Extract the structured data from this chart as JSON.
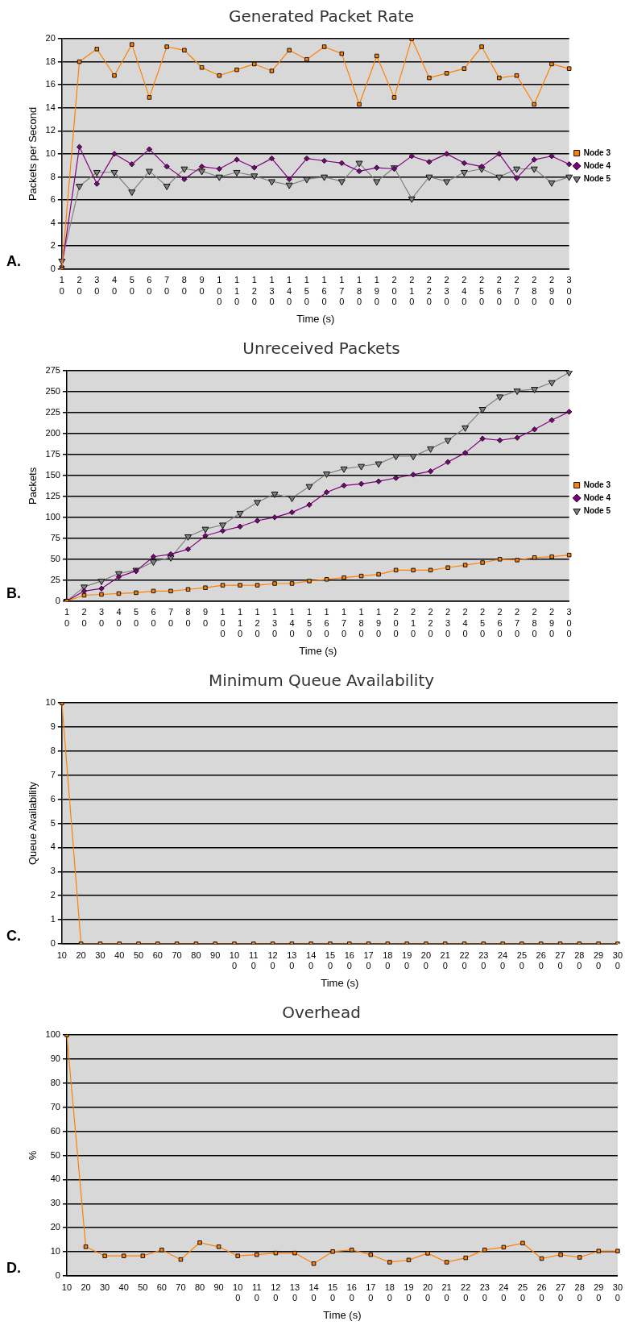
{
  "chart_data": [
    {
      "type": "line",
      "title": "Generated Packet Rate",
      "xlabel": "Time (s)",
      "ylabel": "Packets per Second",
      "annotations": [
        "A."
      ],
      "categories": [
        "10",
        "20",
        "30",
        "40",
        "50",
        "60",
        "70",
        "80",
        "90",
        "100",
        "110",
        "120",
        "130",
        "140",
        "150",
        "160",
        "170",
        "180",
        "190",
        "200",
        "210",
        "220",
        "230",
        "240",
        "250",
        "260",
        "270",
        "280",
        "290",
        "300"
      ],
      "series": [
        {
          "name": "Node 3",
          "color": "#ff8000",
          "marker": "square",
          "values": [
            0,
            18,
            19.1,
            16.8,
            19.5,
            14.9,
            19.3,
            19,
            17.5,
            16.8,
            17.3,
            17.8,
            17.2,
            19,
            18.2,
            19.3,
            18.7,
            14.3,
            18.5,
            14.9,
            20,
            16.6,
            17,
            17.4,
            19.3,
            16.6,
            16.8,
            14.3,
            17.8,
            17.4
          ]
        },
        {
          "name": "Node 4",
          "color": "#800080",
          "marker": "diamond",
          "values": [
            0.2,
            10.6,
            7.4,
            10,
            9.1,
            10.4,
            8.9,
            7.8,
            8.9,
            8.7,
            9.5,
            8.8,
            9.6,
            7.8,
            9.6,
            9.4,
            9.2,
            8.5,
            8.8,
            8.7,
            9.8,
            9.3,
            10,
            9.2,
            8.9,
            10,
            7.9,
            9.5,
            9.8,
            9.1
          ]
        },
        {
          "name": "Node 5",
          "color": "#808080",
          "marker": "triangle",
          "values": [
            0.7,
            7.2,
            8.4,
            8.4,
            6.7,
            8.5,
            7.2,
            8.7,
            8.5,
            8,
            8.4,
            8.1,
            7.6,
            7.3,
            7.8,
            8,
            7.6,
            9.2,
            7.6,
            8.8,
            6.1,
            8,
            7.6,
            8.4,
            8.7,
            8,
            8.7,
            8.7,
            7.5,
            8
          ]
        }
      ],
      "ylim": [
        0,
        20
      ],
      "yticks": [
        0,
        2,
        4,
        6,
        8,
        10,
        12,
        14,
        16,
        18,
        20
      ],
      "grid": "y",
      "legend": "right"
    },
    {
      "type": "line",
      "title": "Unreceived Packets",
      "xlabel": "Time (s)",
      "ylabel": "Packets",
      "annotations": [
        "B."
      ],
      "categories": [
        "10",
        "20",
        "30",
        "40",
        "50",
        "60",
        "70",
        "80",
        "90",
        "100",
        "110",
        "120",
        "130",
        "140",
        "150",
        "160",
        "170",
        "180",
        "190",
        "200",
        "210",
        "220",
        "230",
        "240",
        "250",
        "260",
        "270",
        "280",
        "290",
        "300"
      ],
      "series": [
        {
          "name": "Node 3",
          "color": "#ff8000",
          "marker": "square",
          "values": [
            0,
            7,
            8,
            9,
            10,
            12,
            12,
            14,
            16,
            19,
            19,
            19,
            21,
            21,
            24,
            26,
            28,
            30,
            32,
            37,
            37,
            37,
            40,
            43,
            46,
            50,
            49,
            52,
            53,
            55
          ]
        },
        {
          "name": "Node 4",
          "color": "#800080",
          "marker": "diamond",
          "values": [
            0,
            12,
            15,
            29,
            36,
            53,
            56,
            62,
            78,
            84,
            89,
            96,
            100,
            106,
            115,
            130,
            138,
            140,
            143,
            147,
            151,
            155,
            166,
            177,
            194,
            192,
            195,
            205,
            216,
            226
          ]
        },
        {
          "name": "Node 5",
          "color": "#808080",
          "marker": "triangle",
          "values": [
            0,
            17,
            24,
            33,
            37,
            47,
            52,
            77,
            86,
            91,
            105,
            118,
            128,
            123,
            137,
            152,
            158,
            161,
            164,
            173,
            173,
            182,
            192,
            207,
            229,
            244,
            251,
            253,
            261,
            273
          ]
        }
      ],
      "ylim": [
        0,
        275
      ],
      "yticks": [
        0,
        25,
        50,
        75,
        100,
        125,
        150,
        175,
        200,
        225,
        250,
        275
      ],
      "grid": "y",
      "legend": "right"
    },
    {
      "type": "line",
      "title": "Minimum Queue Availability",
      "xlabel": "Time (s)",
      "ylabel": "Queue Availability",
      "annotations": [
        "C."
      ],
      "categories": [
        "10",
        "20",
        "30",
        "40",
        "50",
        "60",
        "70",
        "80",
        "90",
        "100",
        "110",
        "120",
        "130",
        "140",
        "150",
        "160",
        "170",
        "180",
        "190",
        "200",
        "210",
        "220",
        "230",
        "240",
        "250",
        "260",
        "270",
        "280",
        "290",
        "300"
      ],
      "series": [
        {
          "color": "#ff8000",
          "marker": "square",
          "values": [
            10,
            0,
            0,
            0,
            0,
            0,
            0,
            0,
            0,
            0,
            0,
            0,
            0,
            0,
            0,
            0,
            0,
            0,
            0,
            0,
            0,
            0,
            0,
            0,
            0,
            0,
            0,
            0,
            0,
            0
          ]
        }
      ],
      "ylim": [
        0,
        10
      ],
      "yticks": [
        0,
        1,
        2,
        3,
        4,
        5,
        6,
        7,
        8,
        9,
        10
      ],
      "grid": "y"
    },
    {
      "type": "line",
      "title": "Overhead",
      "xlabel": "Time (s)",
      "ylabel": "%",
      "annotations": [
        "D."
      ],
      "categories": [
        "10",
        "20",
        "30",
        "40",
        "50",
        "60",
        "70",
        "80",
        "90",
        "100",
        "110",
        "120",
        "130",
        "140",
        "150",
        "160",
        "170",
        "180",
        "190",
        "200",
        "210",
        "220",
        "230",
        "240",
        "250",
        "260",
        "270",
        "280",
        "290",
        "300"
      ],
      "series": [
        {
          "color": "#ff8000",
          "marker": "square",
          "values": [
            100,
            12.1,
            8.3,
            8.3,
            8.3,
            10.8,
            6.8,
            13.8,
            12.1,
            8.3,
            8.8,
            9.5,
            9.5,
            5.1,
            10.1,
            10.8,
            8.8,
            5.7,
            6.6,
            9.4,
            5.7,
            7.5,
            10.8,
            11.9,
            13.6,
            7.2,
            8.8,
            7.7,
            10.3,
            10.3
          ]
        }
      ],
      "ylim": [
        0,
        100
      ],
      "yticks": [
        0,
        10,
        20,
        30,
        40,
        50,
        60,
        70,
        80,
        90,
        100
      ],
      "grid": "y"
    }
  ]
}
